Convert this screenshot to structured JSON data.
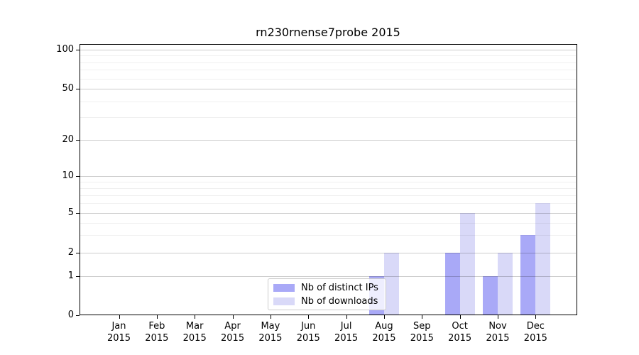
{
  "chart_data": {
    "type": "bar",
    "title": "rn230rnense7probe 2015",
    "categories": [
      "Jan 2015",
      "Feb 2015",
      "Mar 2015",
      "Apr 2015",
      "May 2015",
      "Jun 2015",
      "Jul 2015",
      "Aug 2015",
      "Sep 2015",
      "Oct 2015",
      "Nov 2015",
      "Dec 2015"
    ],
    "series": [
      {
        "name": "Nb of distinct IPs",
        "color": "#a9a9f7",
        "values": [
          0,
          0,
          0,
          0,
          0,
          0,
          0,
          1,
          0,
          2,
          1,
          3
        ]
      },
      {
        "name": "Nb of downloads",
        "color": "#d9d9f8",
        "values": [
          0,
          0,
          0,
          0,
          0,
          0,
          0,
          2,
          0,
          5,
          2,
          6
        ]
      }
    ],
    "xlabel": "",
    "ylabel": "",
    "y_axis": {
      "scale": "symlog",
      "range_bottom": 0,
      "range_top": 112,
      "major_ticks": [
        0,
        1,
        2,
        5,
        10,
        20,
        50,
        100
      ],
      "major_tick_labels": [
        "0",
        "1",
        "2",
        "5",
        "10",
        "20",
        "50",
        "100"
      ],
      "minor_gridlines": [
        3,
        4,
        6,
        7,
        8,
        9,
        30,
        40,
        60,
        70,
        80,
        90
      ]
    },
    "grid": true,
    "legend_position": "lower center-left inside plot"
  },
  "colors": {
    "background": "#ffffff",
    "spine": "#000000",
    "bar_distinct_ips": "#a9a9f7",
    "bar_downloads": "#d9d9f8",
    "legend_border": "#cccccc"
  }
}
